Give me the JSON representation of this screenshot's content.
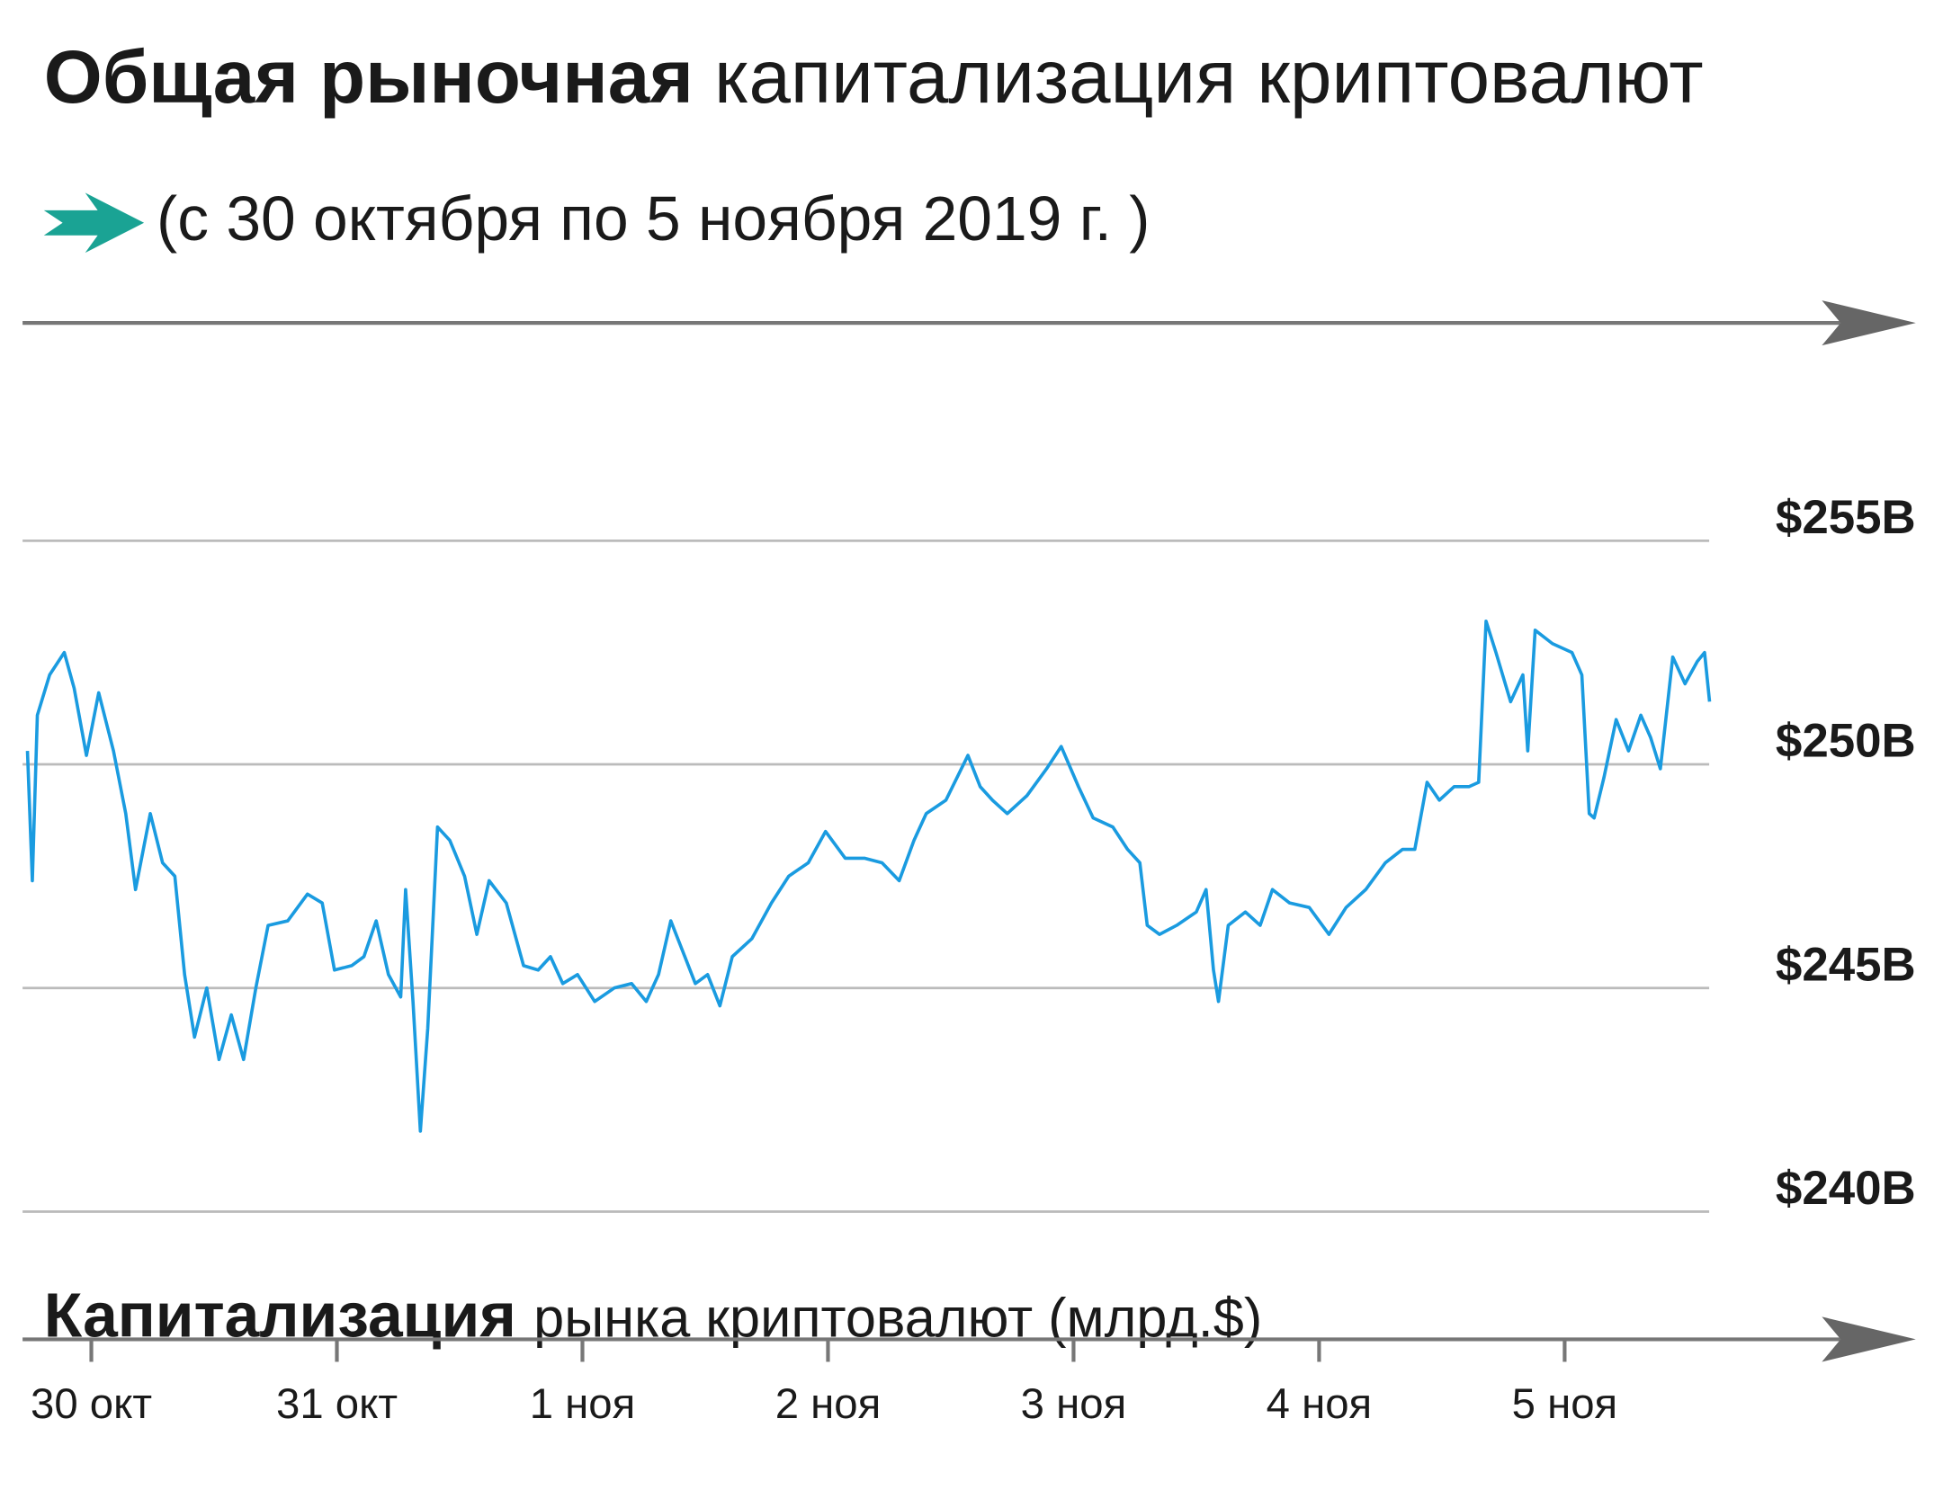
{
  "chart_data": {
    "type": "line",
    "title": [
      "Общая рыночная",
      "капитализация криптовалют"
    ],
    "subtitle": "(с 30 октября по 5 ноября 2019 г. )",
    "axis_label": [
      "Капитализация",
      "рынка криптовалют (млрд.$)"
    ],
    "xlim": [
      -0.28,
      7.43
    ],
    "xticks": [
      {
        "value": 0,
        "label": "30 окт"
      },
      {
        "value": 1,
        "label": "31 окт"
      },
      {
        "value": 2,
        "label": "1 ноя"
      },
      {
        "value": 3,
        "label": "2 ноя"
      },
      {
        "value": 4,
        "label": "3 ноя"
      },
      {
        "value": 5,
        "label": "4 ноя"
      },
      {
        "value": 6,
        "label": "5 ноя"
      }
    ],
    "ylim": [
      240,
      255
    ],
    "yticks": [
      {
        "value": 255,
        "label": "$255B"
      },
      {
        "value": 250,
        "label": "$250B"
      },
      {
        "value": 245,
        "label": "$245B"
      },
      {
        "value": 240,
        "label": "$240B"
      }
    ],
    "grid": true,
    "x": [
      -0.26,
      -0.24,
      -0.22,
      -0.17,
      -0.11,
      -0.07,
      -0.02,
      0.03,
      0.09,
      0.14,
      0.18,
      0.24,
      0.29,
      0.34,
      0.38,
      0.42,
      0.47,
      0.52,
      0.57,
      0.62,
      0.67,
      0.72,
      0.8,
      0.88,
      0.94,
      0.99,
      1.06,
      1.11,
      1.16,
      1.21,
      1.26,
      1.28,
      1.31,
      1.34,
      1.37,
      1.41,
      1.46,
      1.52,
      1.57,
      1.62,
      1.69,
      1.76,
      1.82,
      1.87,
      1.92,
      1.98,
      2.05,
      2.13,
      2.2,
      2.26,
      2.31,
      2.36,
      2.41,
      2.46,
      2.51,
      2.56,
      2.61,
      2.69,
      2.77,
      2.84,
      2.92,
      2.99,
      3.07,
      3.15,
      3.22,
      3.29,
      3.35,
      3.4,
      3.48,
      3.57,
      3.62,
      3.67,
      3.73,
      3.81,
      3.89,
      3.95,
      4.02,
      4.08,
      4.16,
      4.22,
      4.27,
      4.3,
      4.35,
      4.42,
      4.5,
      4.54,
      4.57,
      4.59,
      4.63,
      4.7,
      4.76,
      4.81,
      4.88,
      4.96,
      5.04,
      5.11,
      5.19,
      5.27,
      5.34,
      5.39,
      5.44,
      5.49,
      5.55,
      5.61,
      5.65,
      5.68,
      5.72,
      5.78,
      5.83,
      5.85,
      5.88,
      5.95,
      6.03,
      6.07,
      6.1,
      6.12,
      6.16,
      6.21,
      6.26,
      6.31,
      6.35,
      6.39,
      6.44,
      6.49,
      6.54,
      6.57,
      6.59
    ],
    "series": [
      {
        "color": "#1a9be0",
        "values": [
          250.3,
          247.4,
          251.1,
          252.0,
          252.5,
          251.7,
          250.2,
          251.6,
          250.3,
          248.9,
          247.2,
          248.9,
          247.8,
          247.5,
          245.3,
          243.9,
          245.0,
          243.4,
          244.4,
          243.4,
          245.0,
          246.4,
          246.5,
          247.1,
          246.9,
          245.4,
          245.5,
          245.7,
          246.5,
          245.3,
          244.8,
          247.2,
          244.7,
          241.8,
          244.1,
          248.6,
          248.3,
          247.5,
          246.2,
          247.4,
          246.9,
          245.5,
          245.4,
          245.7,
          245.1,
          245.3,
          244.7,
          245.0,
          245.1,
          244.7,
          245.3,
          246.5,
          245.8,
          245.1,
          245.3,
          244.6,
          245.7,
          246.1,
          246.9,
          247.5,
          247.8,
          248.5,
          247.9,
          247.9,
          247.8,
          247.4,
          248.3,
          248.9,
          249.2,
          250.2,
          249.5,
          249.2,
          248.9,
          249.3,
          249.9,
          250.4,
          249.5,
          248.8,
          248.6,
          248.1,
          247.8,
          246.4,
          246.2,
          246.4,
          246.7,
          247.2,
          245.4,
          244.7,
          246.4,
          246.7,
          246.4,
          247.2,
          246.9,
          246.8,
          246.2,
          246.8,
          247.2,
          247.8,
          248.1,
          248.1,
          249.6,
          249.2,
          249.5,
          249.5,
          249.6,
          253.2,
          252.5,
          251.4,
          252.0,
          250.3,
          253.0,
          252.7,
          252.5,
          252.0,
          248.9,
          248.8,
          249.7,
          251.0,
          250.3,
          251.1,
          250.6,
          249.9,
          252.4,
          251.8,
          252.3,
          252.5,
          251.4
        ]
      }
    ]
  }
}
